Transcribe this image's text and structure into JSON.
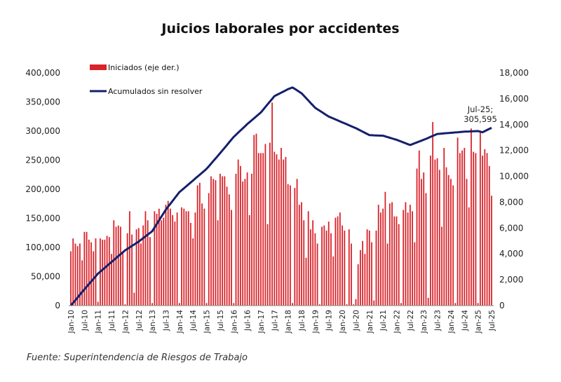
{
  "chart_data": {
    "type": "bar+line",
    "title": "Juicios laborales por accidentes",
    "source": "Fuente: Superintendencia de Riesgos de Trabajo",
    "start_month": "Jan-10",
    "end_month": "Jul-25",
    "x_tick_labels": [
      "Jan-10",
      "Jul-10",
      "Jan-11",
      "Jul-11",
      "Jan-12",
      "Jul-12",
      "Jan-13",
      "Jul-13",
      "Jan-14",
      "Jul-14",
      "Jan-15",
      "Jul-15",
      "Jan-16",
      "Jul-16",
      "Jan-17",
      "Jul-17",
      "Jan-18",
      "Jul-18",
      "Jan-19",
      "Jul-19",
      "Jan-20",
      "Jul-20",
      "Jan-21",
      "Jul-21",
      "Jan-22",
      "Jul-22",
      "Jan-23",
      "Jul-23",
      "Jan-24",
      "Jul-24",
      "Jan-25",
      "Jul-25"
    ],
    "left_axis": {
      "ylim": [
        0,
        400000
      ],
      "ticks": [
        "0",
        "50,000",
        "100,000",
        "150,000",
        "200,000",
        "250,000",
        "300,000",
        "350,000",
        "400,000"
      ]
    },
    "right_axis": {
      "ylim": [
        0,
        18000
      ],
      "ticks": [
        "0",
        "2,000",
        "4,000",
        "6,000",
        "8,000",
        "10,000",
        "12,000",
        "14,000",
        "16,000",
        "18,000"
      ]
    },
    "series": [
      {
        "name": "Iniciados (eje der.)",
        "axis": "right",
        "kind": "bar",
        "color": "#d9232a",
        "values": [
          4200,
          5200,
          4800,
          4600,
          4800,
          3500,
          5700,
          5700,
          5100,
          4900,
          4200,
          5200,
          300,
          5200,
          5100,
          5100,
          5400,
          5300,
          4000,
          6600,
          6100,
          6200,
          6100,
          4200,
          100,
          5600,
          7300,
          5500,
          1000,
          5900,
          6000,
          4800,
          6200,
          7300,
          6600,
          5300,
          200,
          7300,
          7100,
          7500,
          6600,
          6800,
          7800,
          8100,
          7500,
          7000,
          6500,
          7200,
          200,
          7600,
          7500,
          7300,
          7300,
          6400,
          5200,
          7200,
          9300,
          9500,
          7900,
          7500,
          200,
          8700,
          10000,
          9800,
          9700,
          6600,
          10200,
          10000,
          10000,
          9200,
          8600,
          7400,
          200,
          10200,
          11300,
          10800,
          9600,
          9800,
          10300,
          7000,
          10200,
          13200,
          13300,
          11800,
          11800,
          11800,
          12500,
          6300,
          12600,
          15700,
          11900,
          11700,
          11300,
          12200,
          11300,
          11500,
          9400,
          9300,
          200,
          9100,
          9800,
          7800,
          8000,
          6600,
          3700,
          7300,
          5900,
          6600,
          5600,
          4800,
          100,
          6100,
          6200,
          5800,
          6500,
          5600,
          3800,
          6800,
          6900,
          7200,
          6200,
          5800,
          100,
          5900,
          4800,
          100,
          500,
          3200,
          4300,
          5000,
          4000,
          5900,
          5800,
          4900,
          400,
          5800,
          7800,
          7200,
          7500,
          8800,
          4800,
          7900,
          8000,
          6900,
          6900,
          6300,
          200,
          7400,
          8000,
          7200,
          7800,
          7300,
          4900,
          10600,
          12000,
          9800,
          10300,
          8700,
          600,
          11600,
          14200,
          11300,
          11400,
          10500,
          6100,
          12200,
          10700,
          10100,
          9800,
          9300,
          200,
          13000,
          11800,
          12000,
          12200,
          9800,
          7600,
          13700,
          11900,
          11800,
          200,
          13400,
          11600,
          12100,
          11800,
          10800,
          8500
        ]
      },
      {
        "name": "Acumulados sin resolver",
        "axis": "left",
        "kind": "line",
        "color": "#14206b",
        "points": [
          [
            "Jan-10",
            0
          ],
          [
            "Jul-10",
            28000
          ],
          [
            "Jan-11",
            55000
          ],
          [
            "Jul-11",
            75000
          ],
          [
            "Jan-12",
            95000
          ],
          [
            "Jul-12",
            110000
          ],
          [
            "Jan-13",
            128000
          ],
          [
            "Jul-13",
            165000
          ],
          [
            "Jan-14",
            195000
          ],
          [
            "Jul-14",
            215000
          ],
          [
            "Jan-15",
            235000
          ],
          [
            "Jul-15",
            262000
          ],
          [
            "Jan-16",
            290000
          ],
          [
            "Jul-16",
            312000
          ],
          [
            "Jan-17",
            332000
          ],
          [
            "Jul-17",
            360000
          ],
          [
            "Jan-18",
            372000
          ],
          [
            "Mar-18",
            375000
          ],
          [
            "Jul-18",
            365000
          ],
          [
            "Jan-19",
            340000
          ],
          [
            "Jul-19",
            325000
          ],
          [
            "Jan-20",
            315000
          ],
          [
            "Jul-20",
            305000
          ],
          [
            "Jan-21",
            293000
          ],
          [
            "Jul-21",
            292000
          ],
          [
            "Jan-22",
            285000
          ],
          [
            "Jul-22",
            276000
          ],
          [
            "Jan-23",
            285000
          ],
          [
            "Jul-23",
            295000
          ],
          [
            "Jan-24",
            297000
          ],
          [
            "Jul-24",
            299000
          ],
          [
            "Jan-25",
            300000
          ],
          [
            "Mar-25",
            298000
          ],
          [
            "Jul-25",
            305595
          ]
        ]
      }
    ],
    "annotation": {
      "line1": "Jul-25;",
      "line2": "305,595"
    },
    "legend": {
      "position": "top-left",
      "items": [
        "Iniciados (eje der.)",
        "Acumulados sin resolver"
      ]
    },
    "grid": false
  }
}
